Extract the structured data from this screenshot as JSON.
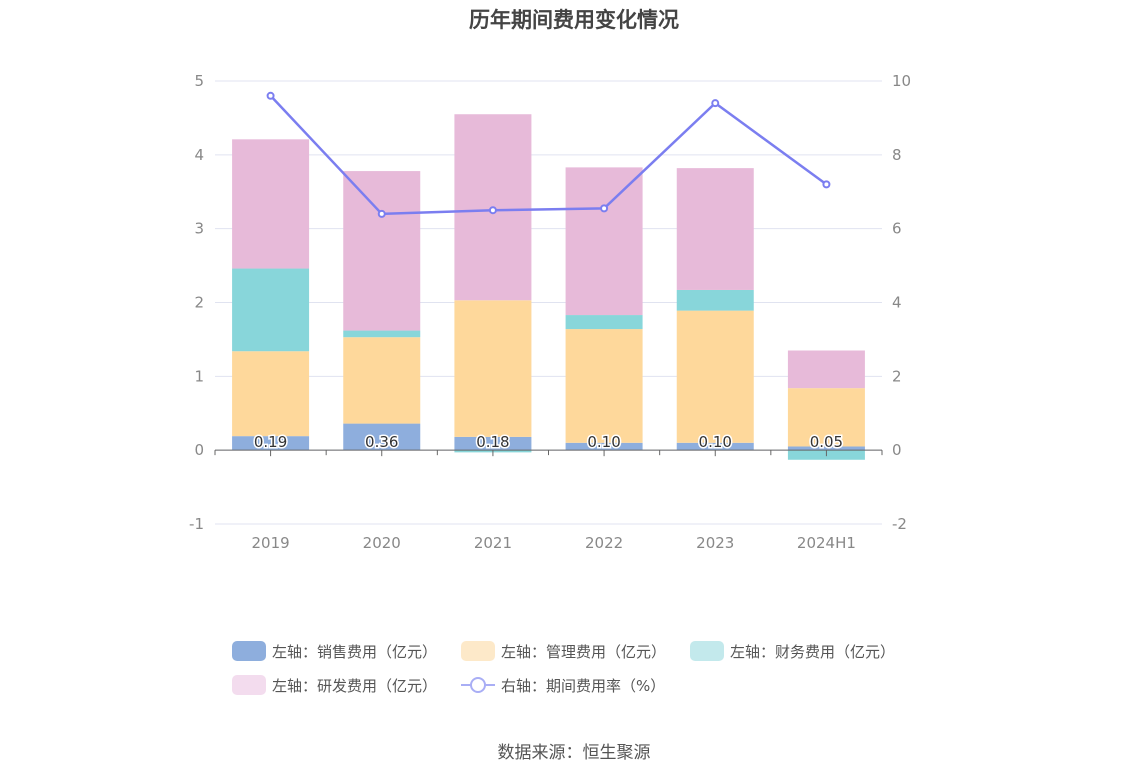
{
  "chart_data": {
    "type": "bar",
    "title": "历年期间费用变化情况",
    "categories": [
      "2019",
      "2020",
      "2021",
      "2022",
      "2023",
      "2024H1"
    ],
    "series": [
      {
        "name": "左轴：销售费用（亿元）",
        "axis": "left",
        "type": "bar",
        "color": "#8eaedd",
        "values": [
          0.19,
          0.36,
          0.18,
          0.1,
          0.1,
          0.05
        ],
        "labels": [
          "0.19",
          "0.36",
          "0.18",
          "0.10",
          "0.10",
          "0.05"
        ]
      },
      {
        "name": "左轴：管理费用（亿元）",
        "axis": "left",
        "type": "bar",
        "color": "#fed89b",
        "values": [
          1.15,
          1.17,
          1.85,
          1.54,
          1.79,
          0.79
        ]
      },
      {
        "name": "左轴：财务费用（亿元）",
        "axis": "left",
        "type": "bar",
        "color": "#88d6da",
        "values": [
          1.12,
          0.09,
          -0.03,
          0.19,
          0.28,
          -0.13
        ]
      },
      {
        "name": "左轴：研发费用（亿元）",
        "axis": "left",
        "type": "bar",
        "color": "#e7bad9",
        "values": [
          1.75,
          2.16,
          2.52,
          2.0,
          1.65,
          0.51
        ]
      },
      {
        "name": "右轴：期间费用率（%）",
        "axis": "right",
        "type": "line",
        "color": "#7b7ef0",
        "values": [
          9.6,
          6.4,
          6.5,
          6.55,
          9.4,
          7.2
        ]
      }
    ],
    "yaxis_left": {
      "min": -1,
      "max": 5,
      "ticks": [
        "5",
        "4",
        "3",
        "2",
        "1",
        "0",
        "-1"
      ]
    },
    "yaxis_right": {
      "min": -2,
      "max": 10,
      "ticks": [
        "10",
        "8",
        "6",
        "4",
        "2",
        "0",
        "-2"
      ]
    },
    "grid": true,
    "legend_position": "bottom"
  },
  "legend": {
    "row1": [
      {
        "label": "左轴：销售费用（亿元）",
        "color": "#8eaedd"
      },
      {
        "label": "左轴：管理费用（亿元）",
        "color": "#fde9c9"
      },
      {
        "label": "左轴：财务费用（亿元）",
        "color": "#c3e9ec"
      }
    ],
    "row2": [
      {
        "label": "左轴：研发费用（亿元）",
        "color": "#f3dcee"
      },
      {
        "label": "右轴：期间费用率（%）",
        "color": "#a9aef5"
      }
    ]
  },
  "source": "数据来源：恒生聚源"
}
